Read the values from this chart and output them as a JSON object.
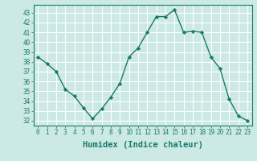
{
  "x": [
    0,
    1,
    2,
    3,
    4,
    5,
    6,
    7,
    8,
    9,
    10,
    11,
    12,
    13,
    14,
    15,
    16,
    17,
    18,
    19,
    20,
    21,
    22,
    23
  ],
  "y": [
    38.5,
    37.8,
    37.0,
    35.2,
    34.5,
    33.3,
    32.2,
    33.2,
    34.4,
    35.8,
    38.5,
    39.4,
    41.0,
    42.6,
    42.6,
    43.3,
    41.0,
    41.1,
    41.0,
    38.5,
    37.3,
    34.2,
    32.5,
    32.0
  ],
  "line_color": "#1a7a6e",
  "marker": "D",
  "marker_size": 2.2,
  "bg_color": "#cce9e5",
  "grid_color": "#ffffff",
  "grid_minor_color": "#ddf0ed",
  "xlabel": "Humidex (Indice chaleur)",
  "xlim": [
    -0.5,
    23.5
  ],
  "ylim": [
    31.5,
    43.8
  ],
  "yticks": [
    32,
    33,
    34,
    35,
    36,
    37,
    38,
    39,
    40,
    41,
    42,
    43
  ],
  "xticks": [
    0,
    1,
    2,
    3,
    4,
    5,
    6,
    7,
    8,
    9,
    10,
    11,
    12,
    13,
    14,
    15,
    16,
    17,
    18,
    19,
    20,
    21,
    22,
    23
  ],
  "tick_fontsize": 5.5,
  "xlabel_fontsize": 7.5,
  "line_width": 1.0,
  "spine_color": "#1a7a6e"
}
